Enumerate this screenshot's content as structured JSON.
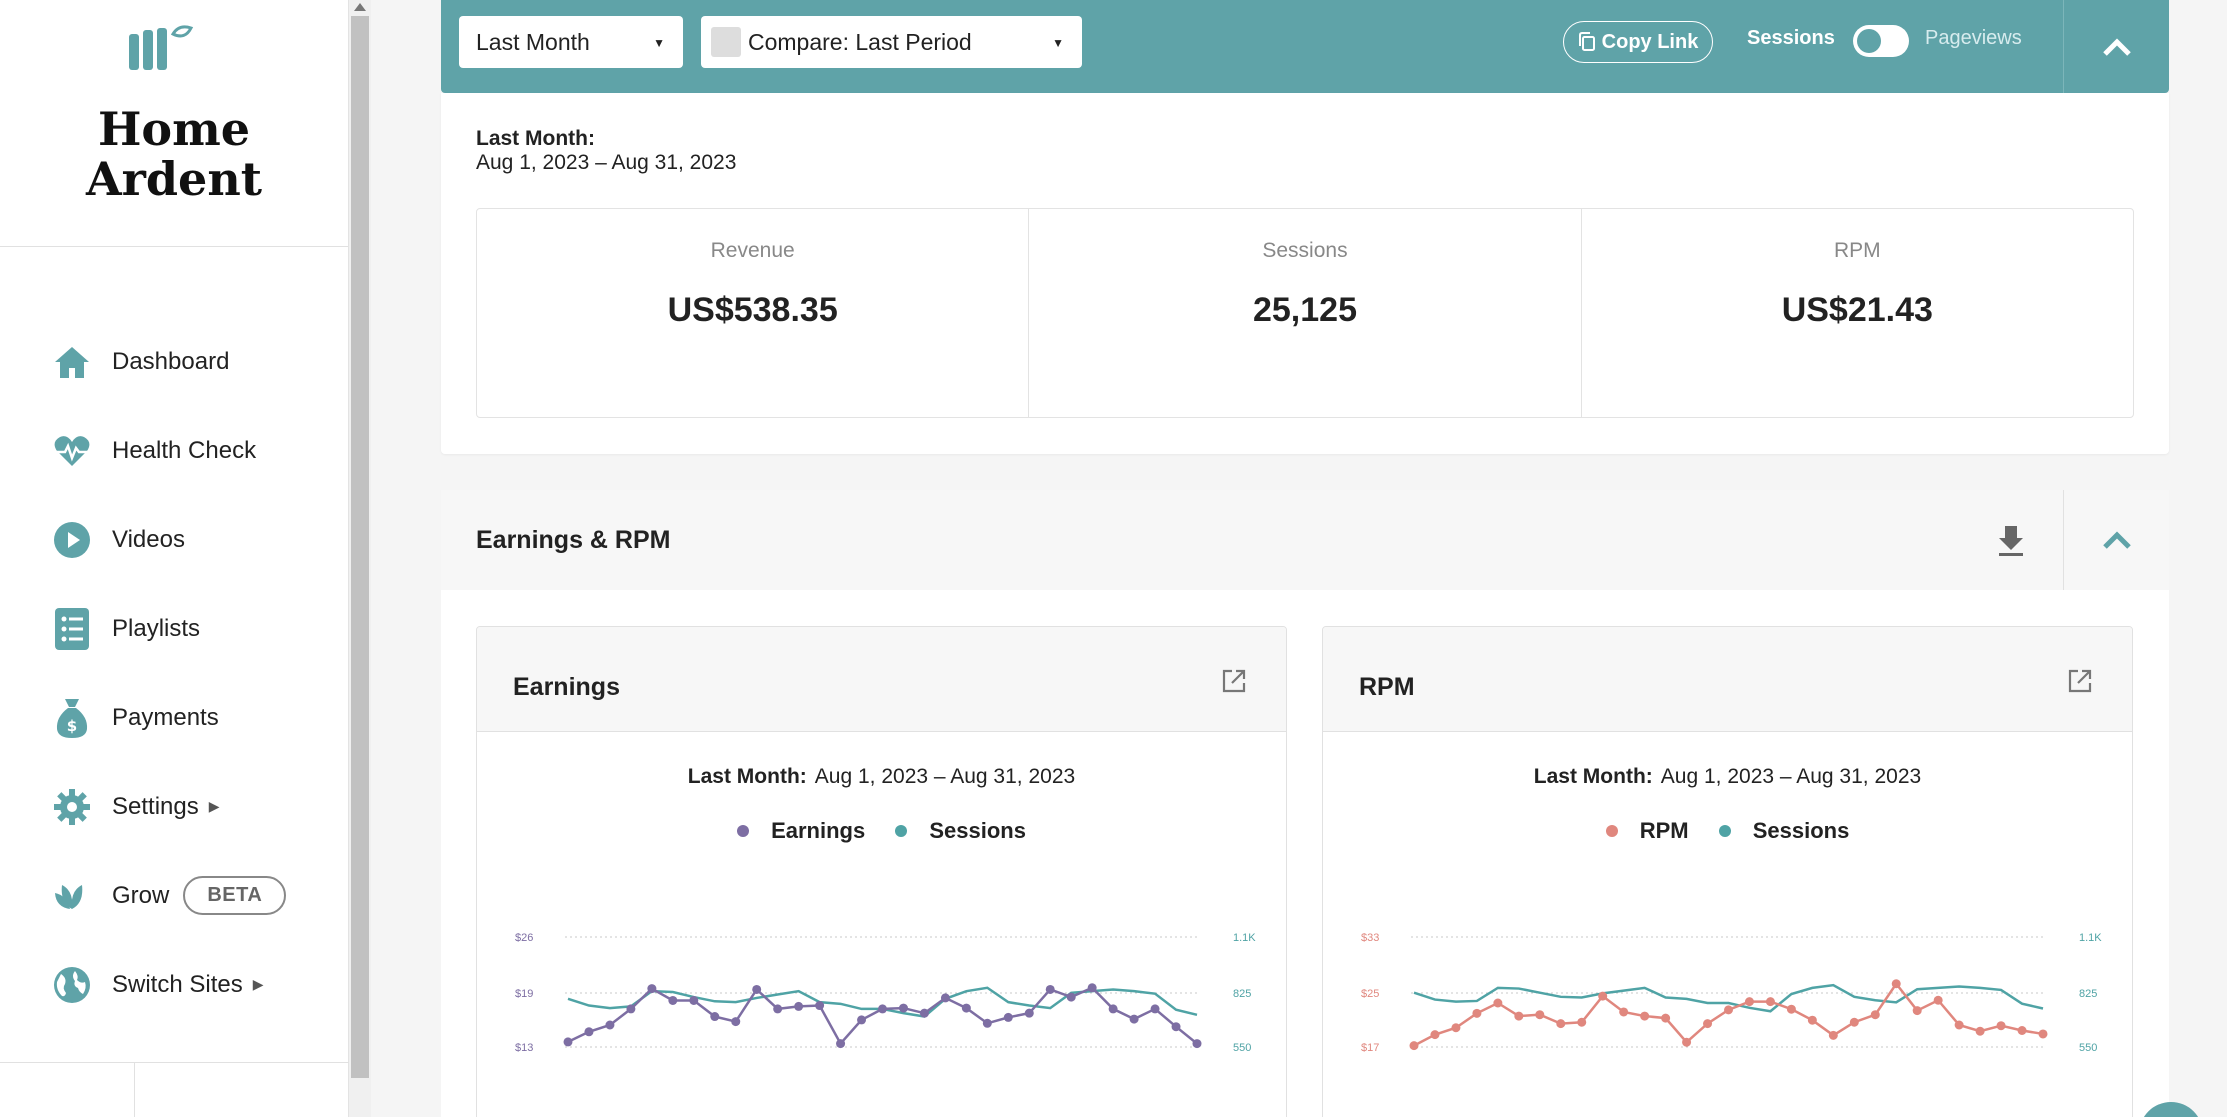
{
  "sidebar": {
    "site_name_line1": "Home",
    "site_name_line2": "Ardent",
    "items": [
      {
        "label": "Dashboard",
        "icon": "home-icon"
      },
      {
        "label": "Health Check",
        "icon": "heartbeat-icon"
      },
      {
        "label": "Videos",
        "icon": "play-icon"
      },
      {
        "label": "Playlists",
        "icon": "list-icon"
      },
      {
        "label": "Payments",
        "icon": "money-bag-icon"
      },
      {
        "label": "Settings",
        "icon": "gear-icon"
      },
      {
        "label": "Grow",
        "icon": "leaf-icon",
        "badge": "BETA"
      },
      {
        "label": "Switch Sites",
        "icon": "globe-icon"
      }
    ]
  },
  "toolbar": {
    "date_range": "Last Month",
    "compare": "Compare: Last Period",
    "copy_link": "Copy Link",
    "toggle_left": "Sessions",
    "toggle_right": "Pageviews"
  },
  "summary": {
    "period_label": "Last Month:",
    "period_range": "Aug 1, 2023 – Aug 31, 2023",
    "kpis": [
      {
        "label": "Revenue",
        "value": "US$538.35"
      },
      {
        "label": "Sessions",
        "value": "25,125"
      },
      {
        "label": "RPM",
        "value": "US$21.43"
      }
    ]
  },
  "section": {
    "title": "Earnings & RPM"
  },
  "colors": {
    "teal": "#5fa3a8",
    "earnings": "#7d6ea3",
    "rpm": "#e0877e",
    "sessions": "#4fa3a5"
  },
  "chart_data": [
    {
      "type": "line",
      "title": "Earnings",
      "subtitle_label": "Last Month:",
      "subtitle_range": "Aug 1, 2023 – Aug 31, 2023",
      "left_ticks": [
        "$26",
        "$19",
        "$13"
      ],
      "right_ticks": [
        "1.1K",
        "825",
        "550"
      ],
      "ylim_left": [
        13,
        26
      ],
      "ylim_right": [
        550,
        1100
      ],
      "series": [
        {
          "name": "Earnings",
          "axis": "left",
          "values": [
            13.6,
            14.8,
            15.6,
            17.5,
            19.9,
            18.5,
            18.5,
            16.6,
            16.0,
            19.8,
            17.5,
            17.8,
            17.9,
            13.4,
            16.2,
            17.5,
            17.6,
            17.0,
            18.8,
            17.6,
            15.8,
            16.5,
            17.0,
            19.8,
            18.9,
            20.0,
            17.5,
            16.3,
            17.5,
            15.4,
            13.4
          ]
        },
        {
          "name": "Sessions",
          "axis": "left",
          "values": [
            18.7,
            17.9,
            17.6,
            17.8,
            19.6,
            19.5,
            18.9,
            18.4,
            18.3,
            18.8,
            19.2,
            19.6,
            18.3,
            18.1,
            17.5,
            17.5,
            17.0,
            16.6,
            18.7,
            19.6,
            20.0,
            18.3,
            17.9,
            17.6,
            19.4,
            19.6,
            19.8,
            19.6,
            19.3,
            17.4,
            16.8
          ]
        }
      ]
    },
    {
      "type": "line",
      "title": "RPM",
      "subtitle_label": "Last Month:",
      "subtitle_range": "Aug 1, 2023 – Aug 31, 2023",
      "left_ticks": [
        "$33",
        "$25",
        "$17"
      ],
      "right_ticks": [
        "1.1K",
        "825",
        "550"
      ],
      "ylim_left": [
        17,
        33
      ],
      "ylim_right": [
        550,
        1100
      ],
      "series": [
        {
          "name": "RPM",
          "axis": "left",
          "values": [
            17.2,
            18.8,
            19.8,
            21.9,
            23.4,
            21.5,
            21.7,
            20.4,
            20.6,
            24.4,
            22.1,
            21.5,
            21.2,
            17.7,
            20.4,
            22.4,
            23.6,
            23.6,
            22.5,
            20.9,
            18.7,
            20.6,
            21.7,
            26.2,
            22.3,
            23.8,
            20.2,
            19.3,
            20.1,
            19.4,
            18.9
          ]
        },
        {
          "name": "Sessions",
          "axis": "left",
          "values": [
            24.9,
            23.9,
            23.6,
            23.7,
            25.6,
            25.5,
            24.9,
            24.3,
            24.2,
            24.8,
            25.2,
            25.6,
            24.2,
            24.0,
            23.4,
            23.4,
            22.7,
            22.2,
            24.7,
            25.6,
            26.0,
            24.3,
            23.8,
            23.5,
            25.4,
            25.6,
            25.8,
            25.6,
            25.3,
            23.3,
            22.6
          ]
        }
      ]
    }
  ]
}
